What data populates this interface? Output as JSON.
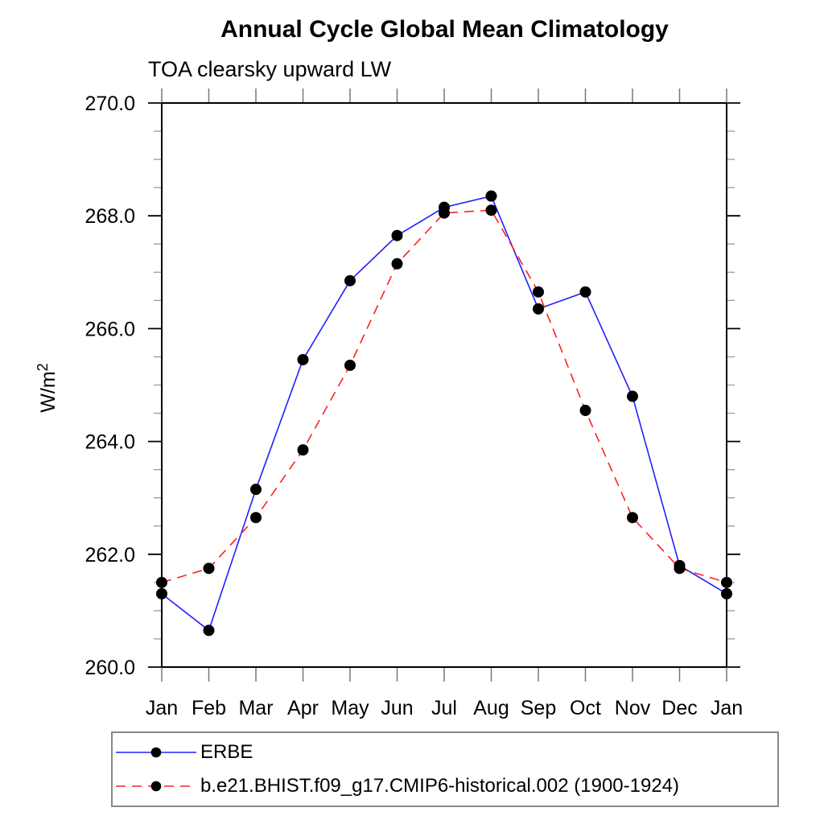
{
  "title": "Annual Cycle Global Mean Climatology",
  "subtitle": "TOA clearsky upward LW",
  "ylabel": {
    "base": "W/m",
    "sup": "2"
  },
  "chart_data": {
    "type": "line",
    "x": [
      "Jan",
      "Feb",
      "Mar",
      "Apr",
      "May",
      "Jun",
      "Jul",
      "Aug",
      "Sep",
      "Oct",
      "Nov",
      "Dec",
      "Jan"
    ],
    "ylim": [
      260.0,
      270.0
    ],
    "ytick_values": [
      260,
      262,
      264,
      266,
      268,
      270
    ],
    "ytick_labels": [
      "260.0",
      "262.0",
      "264.0",
      "266.0",
      "268.0",
      "270.0"
    ],
    "ytick_minor_step": 0.5,
    "grid": false,
    "legend_position": "bottom-left-box",
    "marker_color": "#000000",
    "series": [
      {
        "name": "ERBE",
        "color": "#2020ff",
        "line": "solid",
        "marker": "black-dot",
        "values": [
          261.3,
          260.65,
          263.15,
          265.45,
          266.85,
          267.65,
          268.15,
          268.35,
          266.35,
          266.65,
          264.8,
          261.8,
          261.3
        ]
      },
      {
        "name": "b.e21.BHIST.f09_g17.CMIP6-historical.002 (1900-1924)",
        "color": "#ff2020",
        "line": "dashed",
        "marker": "black-dot",
        "values": [
          261.5,
          261.75,
          262.65,
          263.85,
          265.35,
          267.15,
          268.05,
          268.1,
          266.65,
          264.55,
          262.65,
          261.75,
          261.5
        ]
      }
    ]
  }
}
